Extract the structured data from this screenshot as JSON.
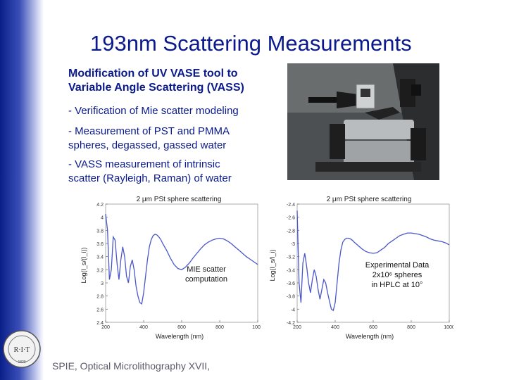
{
  "slide": {
    "title": "193nm Scattering Measurements",
    "subtitle_line1": "Modification of UV VASE tool to",
    "subtitle_line2": "Variable Angle Scattering (VASS)",
    "bullets": [
      {
        "line1": "-  Verification of Mie scatter modeling",
        "line2": ""
      },
      {
        "line1": "-  Measurement of PST and PMMA",
        "line2": "spheres, degassed, gassed water"
      },
      {
        "line1": "-  VASS measurement of intrinsic",
        "line2": "scatter (Rayleigh, Raman) of water"
      }
    ],
    "footer": "SPIE, Optical Microlithography XVII,",
    "seal_text": "R·I·T",
    "seal_year": "1829"
  },
  "colors": {
    "title": "#0a1a8c",
    "curve": "#4a57c8",
    "sidebar": "#0b1f8a"
  },
  "chart_data": [
    {
      "type": "line",
      "title": "2 μm PSt sphere scattering",
      "xlabel": "Wavelength (nm)",
      "ylabel": "Log(I_s/(I_i))",
      "annotation": [
        "MIE scatter",
        "computation"
      ],
      "xlim": [
        200,
        1000
      ],
      "ylim": [
        2.4,
        4.2
      ],
      "x_ticks": [
        "200",
        "400",
        "600",
        "800",
        "1000"
      ],
      "y_ticks": [
        "2.4",
        "2.6",
        "2.8",
        "3",
        "3.2",
        "3.4",
        "3.6",
        "3.8",
        "4",
        "4.2"
      ],
      "series": [
        {
          "x": [
            200,
            210,
            220,
            230,
            240,
            250,
            260,
            270,
            280,
            290,
            300,
            310,
            320,
            330,
            340,
            350,
            360,
            370,
            380,
            390,
            400,
            410,
            420,
            430,
            440,
            450,
            460,
            470,
            480,
            490,
            500,
            520,
            540,
            560,
            580,
            600,
            620,
            640,
            660,
            680,
            700,
            720,
            740,
            760,
            780,
            800,
            820,
            840,
            860,
            880,
            900,
            920,
            940,
            960,
            980,
            1000
          ],
          "y": [
            4.05,
            3.8,
            3.05,
            3.2,
            3.7,
            3.65,
            3.3,
            3.05,
            3.35,
            3.55,
            3.4,
            3.1,
            3.0,
            3.25,
            3.35,
            3.2,
            2.95,
            2.8,
            2.7,
            2.68,
            2.85,
            3.1,
            3.35,
            3.55,
            3.66,
            3.72,
            3.74,
            3.73,
            3.7,
            3.66,
            3.6,
            3.5,
            3.38,
            3.28,
            3.22,
            3.2,
            3.24,
            3.3,
            3.38,
            3.45,
            3.52,
            3.58,
            3.62,
            3.65,
            3.67,
            3.68,
            3.67,
            3.64,
            3.6,
            3.55,
            3.5,
            3.45,
            3.4,
            3.36,
            3.32,
            3.28
          ]
        }
      ]
    },
    {
      "type": "line",
      "title": "2 μm PSt sphere scattering",
      "xlabel": "Wavelength (nm)",
      "ylabel": "Log(I_s/I_i)",
      "annotation": [
        "Experimental Data",
        "2x10⁶ spheres",
        "in HPLC at 10°"
      ],
      "xlim": [
        200,
        1000
      ],
      "ylim": [
        -4.2,
        -2.4
      ],
      "x_ticks": [
        "200",
        "400",
        "600",
        "800",
        "1000"
      ],
      "y_ticks": [
        "-2.4",
        "-2.6",
        "-2.8",
        "-3",
        "-3.2",
        "-3.4",
        "-3.6",
        "-3.8",
        "-4",
        "-4.2"
      ],
      "series": [
        {
          "x": [
            200,
            210,
            220,
            230,
            240,
            250,
            260,
            270,
            280,
            290,
            300,
            310,
            320,
            330,
            340,
            350,
            360,
            370,
            380,
            390,
            400,
            410,
            420,
            430,
            440,
            450,
            460,
            470,
            480,
            490,
            500,
            520,
            540,
            560,
            580,
            600,
            620,
            640,
            660,
            680,
            700,
            720,
            740,
            760,
            780,
            800,
            820,
            840,
            860,
            880,
            900,
            920,
            940,
            960,
            980,
            1000
          ],
          "y": [
            -2.5,
            -3.6,
            -3.9,
            -3.3,
            -3.15,
            -3.35,
            -3.6,
            -3.75,
            -3.55,
            -3.4,
            -3.5,
            -3.7,
            -3.85,
            -3.7,
            -3.55,
            -3.6,
            -3.75,
            -3.88,
            -4.0,
            -4.02,
            -3.9,
            -3.6,
            -3.3,
            -3.1,
            -2.98,
            -2.94,
            -2.92,
            -2.92,
            -2.93,
            -2.95,
            -2.98,
            -3.03,
            -3.08,
            -3.12,
            -3.14,
            -3.15,
            -3.14,
            -3.1,
            -3.06,
            -3.0,
            -2.96,
            -2.92,
            -2.88,
            -2.86,
            -2.84,
            -2.84,
            -2.85,
            -2.86,
            -2.88,
            -2.9,
            -2.93,
            -2.95,
            -2.96,
            -2.97,
            -2.99,
            -3.02
          ]
        }
      ]
    }
  ]
}
